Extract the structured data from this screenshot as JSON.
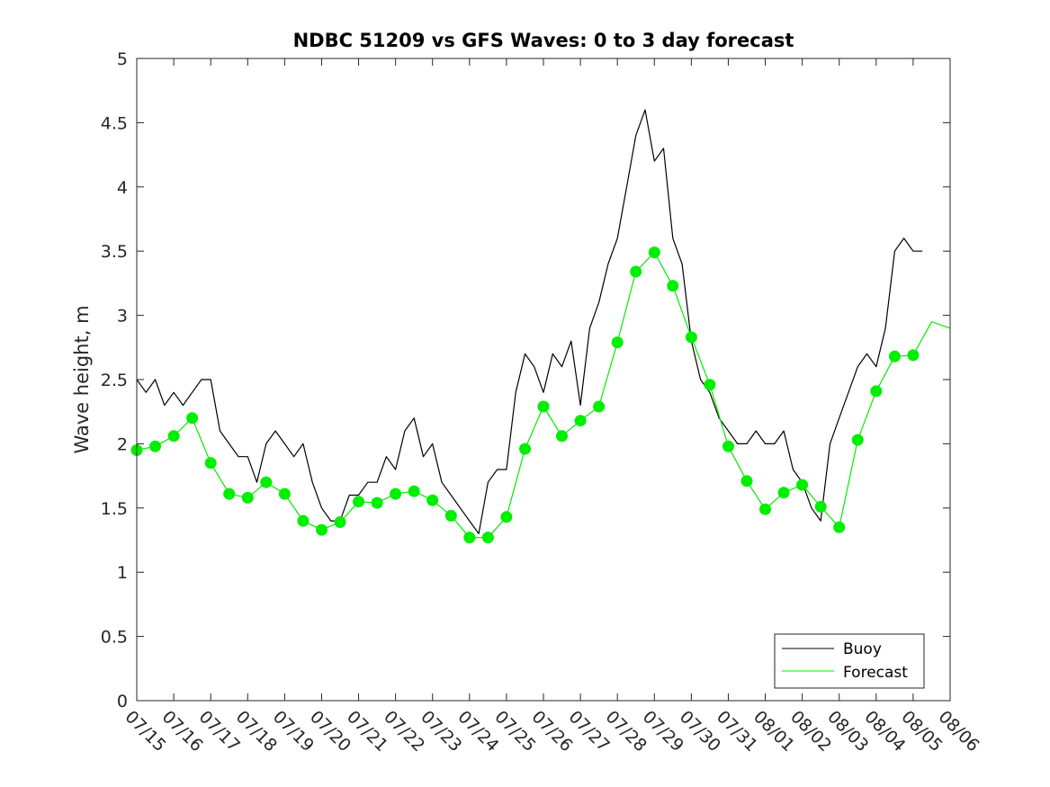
{
  "chart_data": {
    "type": "line",
    "title": "NDBC 51209 vs GFS Waves: 0 to 3 day forecast",
    "xlabel": "",
    "ylabel": "Wave height, m",
    "ylim": [
      0,
      5
    ],
    "yticks": [
      "0",
      "0.5",
      "1",
      "1.5",
      "2",
      "2.5",
      "3",
      "3.5",
      "4",
      "4.5",
      "5"
    ],
    "xticks": [
      "07/15",
      "07/16",
      "07/17",
      "07/18",
      "07/19",
      "07/20",
      "07/21",
      "07/22",
      "07/23",
      "07/24",
      "07/25",
      "07/26",
      "07/27",
      "07/28",
      "07/29",
      "07/30",
      "07/31",
      "08/01",
      "08/02",
      "08/03",
      "08/04",
      "08/05",
      "08/06"
    ],
    "xlim_days": [
      0,
      22
    ],
    "grid": false,
    "legend": {
      "location": "bottom-right",
      "entries": [
        "Buoy",
        "Forecast"
      ]
    },
    "colors": {
      "buoy": "#000000",
      "forecast": "#00ee00"
    },
    "series": [
      {
        "name": "Buoy",
        "x": [
          0.0,
          0.25,
          0.5,
          0.75,
          1.0,
          1.25,
          1.5,
          1.75,
          2.0,
          2.25,
          2.5,
          2.75,
          3.0,
          3.25,
          3.5,
          3.75,
          4.0,
          4.25,
          4.5,
          4.75,
          5.0,
          5.25,
          5.5,
          5.75,
          6.0,
          6.25,
          6.5,
          6.75,
          7.0,
          7.25,
          7.5,
          7.75,
          8.0,
          8.25,
          8.5,
          8.75,
          9.0,
          9.25,
          9.5,
          9.75,
          10.0,
          10.25,
          10.5,
          10.75,
          11.0,
          11.25,
          11.5,
          11.75,
          12.0,
          12.25,
          12.5,
          12.75,
          13.0,
          13.25,
          13.5,
          13.75,
          14.0,
          14.25,
          14.5,
          14.75,
          15.0,
          15.25,
          15.5,
          15.75,
          16.0,
          16.25,
          16.5,
          16.75,
          17.0,
          17.25,
          17.5,
          17.75,
          18.0,
          18.25,
          18.5,
          18.75,
          19.0,
          19.25,
          19.5,
          19.75,
          20.0,
          20.25,
          20.5,
          20.75,
          21.0,
          21.25
        ],
        "values": [
          2.5,
          2.4,
          2.5,
          2.3,
          2.4,
          2.3,
          2.4,
          2.5,
          2.5,
          2.1,
          2.0,
          1.9,
          1.9,
          1.7,
          2.0,
          2.1,
          2.0,
          1.9,
          2.0,
          1.7,
          1.5,
          1.4,
          1.4,
          1.6,
          1.6,
          1.7,
          1.7,
          1.9,
          1.8,
          2.1,
          2.2,
          1.9,
          2.0,
          1.7,
          1.6,
          1.5,
          1.4,
          1.3,
          1.7,
          1.8,
          1.8,
          2.4,
          2.7,
          2.6,
          2.4,
          2.7,
          2.6,
          2.8,
          2.3,
          2.9,
          3.1,
          3.4,
          3.6,
          4.0,
          4.4,
          4.6,
          4.2,
          4.3,
          3.6,
          3.4,
          2.8,
          2.5,
          2.4,
          2.2,
          2.1,
          2.0,
          2.0,
          2.1,
          2.0,
          2.0,
          2.1,
          1.8,
          1.7,
          1.5,
          1.4,
          2.0,
          2.2,
          2.4,
          2.6,
          2.7,
          2.6,
          2.9,
          3.5,
          3.6,
          3.5,
          3.5
        ]
      },
      {
        "name": "Forecast",
        "x": [
          0.0,
          0.5,
          1.0,
          1.5,
          2.0,
          2.5,
          3.0,
          3.5,
          4.0,
          4.5,
          5.0,
          5.5,
          6.0,
          6.5,
          7.0,
          7.5,
          8.0,
          8.5,
          9.0,
          9.5,
          10.0,
          10.5,
          11.0,
          11.5,
          12.0,
          12.5,
          13.0,
          13.5,
          14.0,
          14.5,
          15.0,
          15.5,
          16.0,
          16.5,
          17.0,
          17.5,
          18.0,
          18.5,
          19.0,
          19.5,
          20.0,
          20.5,
          21.0,
          21.5,
          22.0
        ],
        "values": [
          1.95,
          1.98,
          2.06,
          2.2,
          1.85,
          1.61,
          1.58,
          1.7,
          1.61,
          1.4,
          1.33,
          1.39,
          1.55,
          1.54,
          1.61,
          1.63,
          1.56,
          1.44,
          1.27,
          1.27,
          1.43,
          1.96,
          2.29,
          2.06,
          2.18,
          2.29,
          2.79,
          3.34,
          3.49,
          3.23,
          2.83,
          2.46,
          1.98,
          1.71,
          1.49,
          1.62,
          1.68,
          1.51,
          1.35,
          2.03,
          2.41,
          2.68,
          2.69,
          2.95,
          2.9
        ]
      }
    ],
    "forecast_markers": {
      "x": [
        0,
        0.5,
        1,
        1.5,
        2,
        2.5,
        3,
        3.5,
        4,
        4.5,
        5,
        5.5,
        6,
        6.5,
        7,
        7.5,
        8,
        8.5,
        9,
        9.5,
        10,
        10.5,
        11,
        11.5,
        12,
        12.5,
        13,
        13.5,
        14,
        14.5,
        15,
        15.5,
        16,
        16.5,
        17,
        17.5,
        18,
        18.5,
        19,
        19.5,
        20,
        20.5,
        21
      ],
      "values": [
        1.95,
        1.98,
        2.06,
        2.2,
        1.85,
        1.61,
        1.58,
        1.7,
        1.61,
        1.4,
        1.33,
        1.39,
        1.55,
        1.54,
        1.61,
        1.63,
        1.56,
        1.44,
        1.27,
        1.27,
        1.43,
        1.96,
        2.29,
        2.06,
        2.18,
        2.29,
        2.79,
        3.34,
        3.49,
        3.23,
        2.83,
        2.46,
        1.98,
        1.71,
        1.49,
        1.62,
        1.68,
        1.51,
        1.35,
        2.03,
        2.41,
        2.68,
        2.69
      ]
    }
  }
}
